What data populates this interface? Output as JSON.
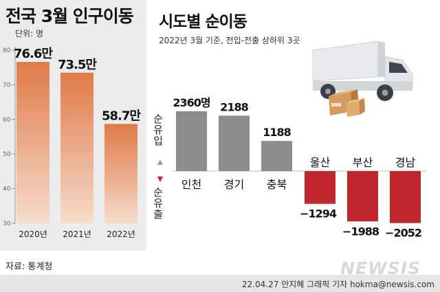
{
  "title": "전국 3월 인구이동",
  "unit_label": "단위: 명",
  "chart2_title": "시도별 순이동",
  "chart2_subtitle": "2022년 3월 기준, 전입-전출 상하위 3곳",
  "source": "자료: 통계청",
  "credit": "22.04.27 안지혜 그래픽 기자 hokma@newsis.com",
  "logo": "NEWSIS",
  "legend_in": "순유입",
  "legend_out": "순유출",
  "colors": {
    "bar_orange_top": "#e07a4a",
    "bar_orange_bottom": "#f6dccb",
    "bar_gray": "#8c8c8c",
    "bar_red": "#c0272d",
    "accent_red": "#d0202a"
  },
  "chart_data": [
    {
      "type": "bar",
      "categories": [
        "2020년",
        "2021년",
        "2022년"
      ],
      "values": [
        76.6,
        73.5,
        58.7
      ],
      "value_labels": [
        "76.6만",
        "73.5만",
        "58.7만"
      ],
      "y_ticks": [
        "80",
        "70",
        "60",
        "50",
        "40",
        "30"
      ],
      "ylim": [
        30,
        80
      ],
      "ylabel": "",
      "title": "전국 3월 인구이동"
    },
    {
      "type": "bar",
      "categories": [
        "인천",
        "경기",
        "충북",
        "울산",
        "부산",
        "경남"
      ],
      "values": [
        2360,
        2188,
        1188,
        -1294,
        -1988,
        -2052
      ],
      "value_labels": [
        "2360명",
        "2188",
        "1188",
        "−1294",
        "−1988",
        "−2052"
      ],
      "title": "시도별 순이동",
      "subtitle": "2022년 3월 기준, 전입-전출 상하위 3곳"
    }
  ]
}
